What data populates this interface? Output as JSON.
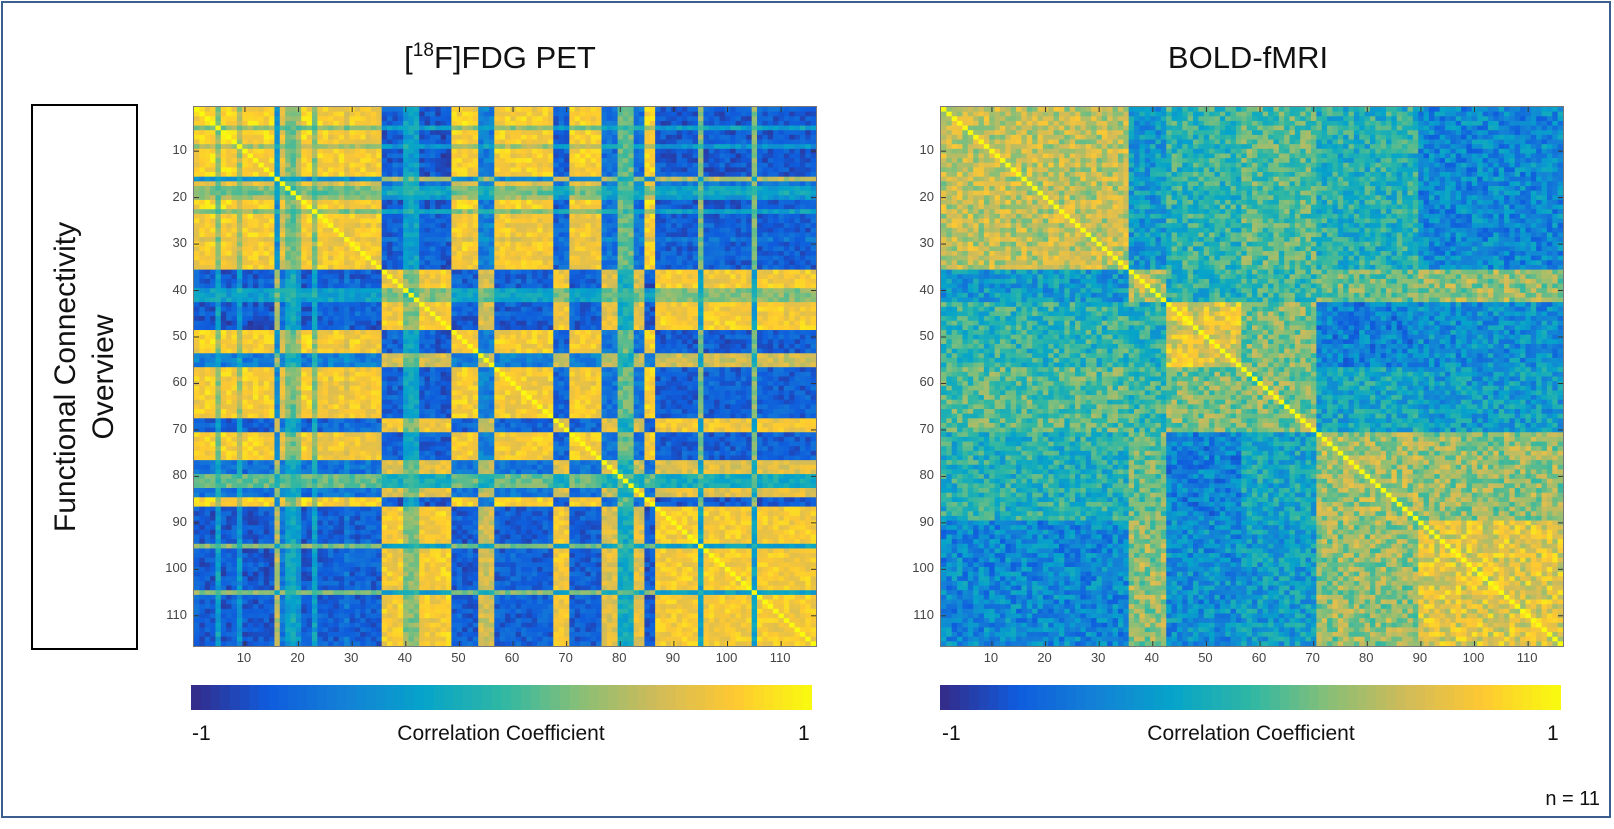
{
  "side_label": {
    "line1": "Functional Connectivity",
    "line2": "Overview"
  },
  "sample_size": "n = 11",
  "colorbar": {
    "min_label": "-1",
    "max_label": "1",
    "label": "Correlation Coefficient",
    "colors": [
      "#352a87",
      "#0f5cdd",
      "#1481d6",
      "#06a4ca",
      "#2eb7a4",
      "#87bf77",
      "#d1bb59",
      "#fec832",
      "#f9fb0e"
    ]
  },
  "chart_data": [
    {
      "type": "heatmap",
      "title_prefix": "[",
      "title_sup": "18",
      "title_suffix": "F]FDG PET",
      "n_regions": 116,
      "clim": [
        -1,
        1
      ],
      "ticks": [
        10,
        20,
        30,
        40,
        50,
        60,
        70,
        80,
        90,
        100,
        110
      ],
      "colorbar_label": "Correlation Coefficient",
      "model": "loading",
      "loadings": [
        0.85,
        0.9,
        0.9,
        0.9,
        0.3,
        0.9,
        0.9,
        0.85,
        0.4,
        0.9,
        0.9,
        0.9,
        0.85,
        0.9,
        0.9,
        -0.5,
        0.7,
        0.3,
        0.2,
        0.4,
        0.9,
        0.9,
        0.3,
        0.85,
        0.85,
        0.8,
        0.85,
        0.85,
        0.7,
        0.85,
        0.85,
        0.85,
        0.8,
        0.85,
        0.85,
        -0.85,
        -0.85,
        -0.8,
        -0.85,
        -0.3,
        -0.3,
        -0.3,
        -0.85,
        -0.85,
        -0.8,
        -0.85,
        -0.9,
        -0.9,
        0.85,
        0.85,
        0.9,
        0.85,
        0.85,
        -0.6,
        -0.6,
        -0.6,
        0.85,
        0.85,
        0.85,
        0.8,
        0.85,
        0.85,
        0.85,
        0.85,
        0.85,
        0.85,
        0.85,
        -0.8,
        -0.8,
        -0.8,
        0.85,
        0.85,
        0.85,
        0.85,
        0.85,
        0.85,
        -0.7,
        -0.7,
        -0.7,
        0.2,
        0.2,
        0.2,
        -0.7,
        -0.7,
        0.9,
        0.9,
        -0.85,
        -0.85,
        -0.85,
        -0.85,
        -0.85,
        -0.85,
        -0.85,
        -0.85,
        0.3,
        -0.85,
        -0.85,
        -0.85,
        -0.85,
        -0.85,
        -0.85,
        -0.85,
        -0.85,
        -0.85,
        0.3,
        -0.85,
        -0.85,
        -0.85,
        -0.85,
        -0.85,
        -0.85,
        -0.85,
        -0.85,
        -0.85,
        -0.85,
        -0.85
      ]
    },
    {
      "type": "heatmap",
      "title_prefix": "",
      "title_sup": "",
      "title_suffix": "BOLD-fMRI",
      "n_regions": 116,
      "clim": [
        -1,
        1
      ],
      "ticks": [
        10,
        20,
        30,
        40,
        50,
        60,
        70,
        80,
        90,
        100,
        110
      ],
      "colorbar_label": "Correlation Coefficient",
      "model": "modules",
      "module_bounds": [
        1,
        36,
        43,
        57,
        71,
        90
      ],
      "module_means": [
        [
          0.45,
          -0.3,
          -0.05,
          0.1,
          -0.1,
          -0.45
        ],
        [
          -0.3,
          0.4,
          -0.1,
          0.0,
          0.15,
          0.3
        ],
        [
          -0.05,
          -0.1,
          0.6,
          0.2,
          -0.5,
          -0.4
        ],
        [
          0.1,
          0.0,
          0.2,
          0.2,
          -0.2,
          -0.3
        ],
        [
          -0.1,
          0.15,
          -0.5,
          -0.2,
          0.35,
          0.3
        ],
        [
          -0.45,
          0.3,
          -0.4,
          -0.3,
          0.3,
          0.6
        ]
      ]
    }
  ]
}
